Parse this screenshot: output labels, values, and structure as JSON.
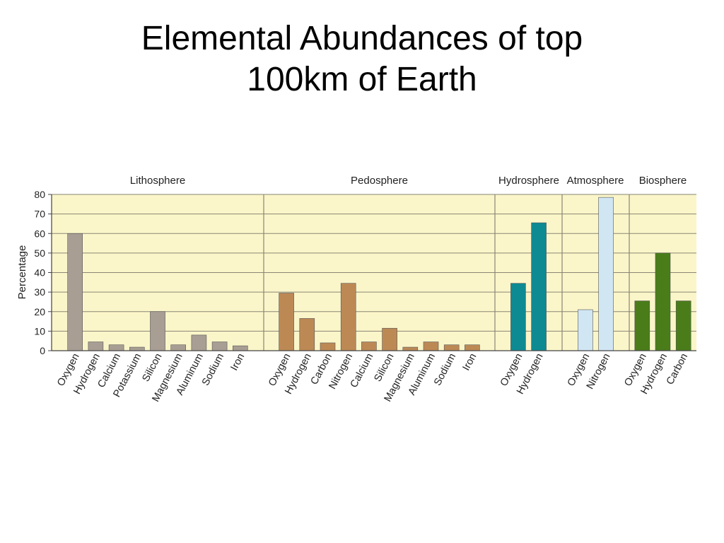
{
  "slide": {
    "title_line1": "Elemental Abundances of top",
    "title_line2": "100km of Earth"
  },
  "chart_data": {
    "type": "bar",
    "title": "Elemental Abundances of top 100km of Earth",
    "xlabel": "",
    "ylabel": "Percentage",
    "ylim": [
      0,
      80
    ],
    "yticks": [
      0,
      10,
      20,
      30,
      40,
      50,
      60,
      70,
      80
    ],
    "grid": true,
    "plot_background": "#fbf6c9",
    "groups": [
      {
        "name": "Lithosphere",
        "color": "#a89e94",
        "categories": [
          "Oxygen",
          "Hydrogen",
          "Calcium",
          "Potassium",
          "Silicon",
          "Magnesium",
          "Aluminum",
          "Sodium",
          "Iron"
        ],
        "values": [
          60,
          4.5,
          3,
          1.8,
          20,
          3,
          8,
          4.5,
          2.5
        ]
      },
      {
        "name": "Pedosphere",
        "color": "#bc8955",
        "categories": [
          "Oxygen",
          "Hydrogen",
          "Carbon",
          "Nitrogen",
          "Calcium",
          "Silicon",
          "Magnesium",
          "Aluminum",
          "Sodium",
          "Iron"
        ],
        "values": [
          29.5,
          16.5,
          4,
          34.5,
          4.5,
          11.5,
          1.8,
          4.5,
          3,
          3
        ]
      },
      {
        "name": "Hydrosphere",
        "color": "#0e8a93",
        "categories": [
          "Oxygen",
          "Hydrogen"
        ],
        "values": [
          34.5,
          65.5
        ]
      },
      {
        "name": "Atmosphere",
        "color": "#d1e6f3",
        "categories": [
          "Oxygen",
          "Nitrogen"
        ],
        "values": [
          21,
          78.5
        ]
      },
      {
        "name": "Biosphere",
        "color": "#4a7d1a",
        "categories": [
          "Oxygen",
          "Hydrogen",
          "Carbon"
        ],
        "values": [
          25.5,
          50,
          25.5
        ]
      }
    ]
  }
}
